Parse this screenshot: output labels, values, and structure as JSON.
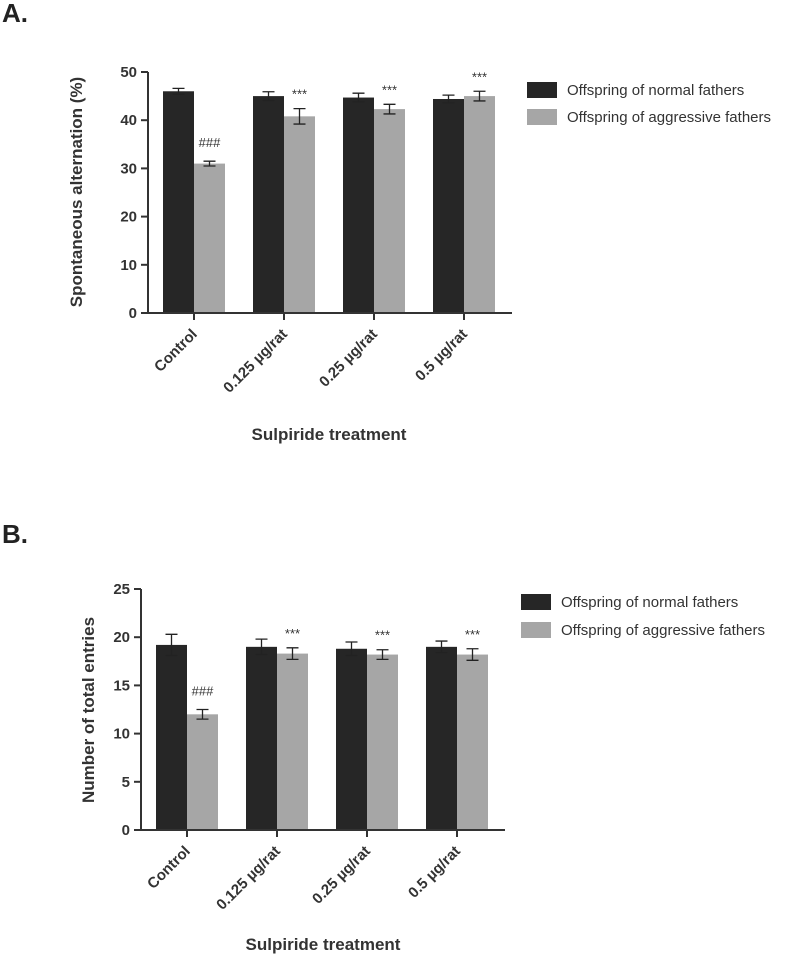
{
  "colors": {
    "normal": "#262626",
    "aggressive": "#a6a6a6",
    "axis": "#333333"
  },
  "chart_data": [
    {
      "panel": "A.",
      "type": "bar",
      "title": "",
      "xlabel": "Sulpiride treatment",
      "ylabel": "Spontaneous alternation (%)",
      "ylim": [
        0,
        50
      ],
      "yticks": [
        0,
        10,
        20,
        30,
        40,
        50
      ],
      "ytick_labels": [
        "0",
        "10",
        "20",
        "30",
        "40",
        "50"
      ],
      "categories": [
        "Control",
        "0.125 µg/rat",
        "0.25 µg/rat",
        "0.5 µg/rat"
      ],
      "series": [
        {
          "name": "Offspring of normal fathers",
          "color": "#262626",
          "values": [
            46,
            45,
            44.7,
            44.4
          ],
          "errors": [
            0.6,
            0.9,
            0.9,
            0.8
          ]
        },
        {
          "name": "Offspring of aggressive fathers",
          "color": "#a6a6a6",
          "values": [
            31,
            40.8,
            42.3,
            45
          ],
          "errors": [
            0.5,
            1.6,
            1.0,
            1.0
          ]
        }
      ],
      "annotations": [
        {
          "category": "Control",
          "series": 1,
          "text": "###"
        },
        {
          "category": "0.125 µg/rat",
          "series": 1,
          "text": "***"
        },
        {
          "category": "0.25 µg/rat",
          "series": 1,
          "text": "***"
        },
        {
          "category": "0.5 µg/rat",
          "series": 1,
          "text": "***"
        }
      ],
      "legend": "right"
    },
    {
      "panel": "B.",
      "type": "bar",
      "title": "",
      "xlabel": "Sulpiride treatment",
      "ylabel": "Number of total entries",
      "ylim": [
        0,
        25
      ],
      "yticks": [
        0,
        5,
        10,
        15,
        20,
        25
      ],
      "ytick_labels": [
        "0",
        "5",
        "10",
        "15",
        "20",
        "25"
      ],
      "categories": [
        "Control",
        "0.125 µg/rat",
        "0.25 µg/rat",
        "0.5 µg/rat"
      ],
      "series": [
        {
          "name": "Offspring of normal fathers",
          "color": "#262626",
          "values": [
            19.2,
            19,
            18.8,
            19
          ],
          "errors": [
            1.1,
            0.8,
            0.7,
            0.6
          ]
        },
        {
          "name": "Offspring of aggressive fathers",
          "color": "#a6a6a6",
          "values": [
            12,
            18.3,
            18.2,
            18.2
          ],
          "errors": [
            0.5,
            0.6,
            0.5,
            0.6
          ]
        }
      ],
      "annotations": [
        {
          "category": "Control",
          "series": 1,
          "text": "###"
        },
        {
          "category": "0.125 µg/rat",
          "series": 1,
          "text": "***"
        },
        {
          "category": "0.25 µg/rat",
          "series": 1,
          "text": "***"
        },
        {
          "category": "0.5 µg/rat",
          "series": 1,
          "text": "***"
        }
      ],
      "legend": "right"
    }
  ]
}
